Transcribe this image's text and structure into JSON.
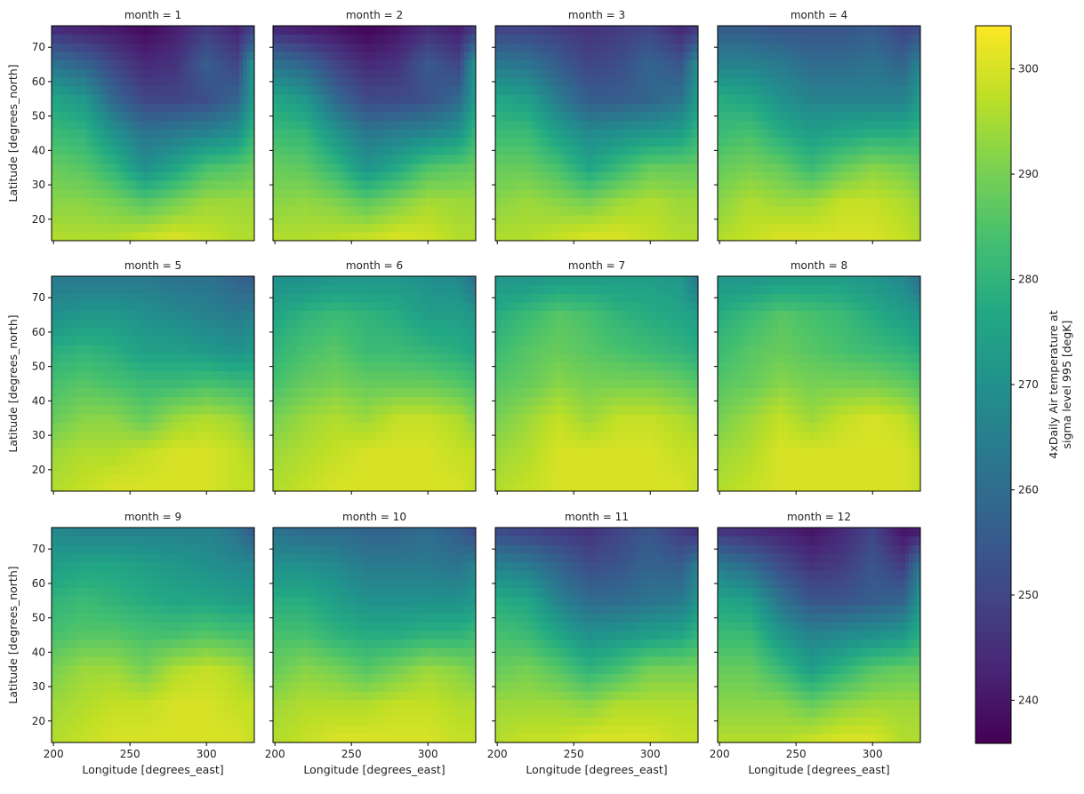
{
  "chart_data": {
    "type": "heatmap",
    "layout": "facet grid, 3 rows x 4 columns, shared axes",
    "colormap": "viridis",
    "xlabel": "Longitude [degrees_east]",
    "ylabel": "Latitude [degrees_north]",
    "xlim": [
      198.75,
      331.25
    ],
    "ylim": [
      13.75,
      76.25
    ],
    "xticks": [
      200,
      250,
      300
    ],
    "yticks": [
      20,
      30,
      40,
      50,
      60,
      70
    ],
    "colorbar": {
      "label_lines": [
        "4xDaily Air temperature at",
        "sigma level 995 [degK]"
      ],
      "range": [
        235.9,
        304.1
      ],
      "ticks": [
        240,
        250,
        260,
        270,
        280,
        290,
        300
      ]
    },
    "grid_lat": [
      75,
      65,
      55,
      45,
      35,
      25,
      15
    ],
    "grid_lon": [
      200,
      220,
      240,
      260,
      280,
      300,
      320,
      330
    ],
    "panels": [
      {
        "title": "month = 1",
        "values": [
          [
            245,
            243,
            241,
            238,
            242,
            248,
            243,
            250
          ],
          [
            262,
            258,
            250,
            244,
            246,
            256,
            250,
            270
          ],
          [
            276,
            272,
            258,
            250,
            250,
            252,
            258,
            272
          ],
          [
            282,
            280,
            270,
            262,
            264,
            266,
            270,
            280
          ],
          [
            288,
            286,
            280,
            270,
            276,
            284,
            286,
            288
          ],
          [
            292,
            292,
            290,
            286,
            290,
            294,
            294,
            294
          ],
          [
            296,
            296,
            296,
            298,
            300,
            298,
            296,
            296
          ]
        ]
      },
      {
        "title": "month = 2",
        "values": [
          [
            244,
            242,
            240,
            237,
            240,
            245,
            242,
            248
          ],
          [
            262,
            258,
            250,
            244,
            246,
            255,
            250,
            270
          ],
          [
            276,
            272,
            259,
            251,
            251,
            253,
            259,
            272
          ],
          [
            282,
            281,
            271,
            263,
            265,
            267,
            271,
            280
          ],
          [
            288,
            287,
            281,
            271,
            277,
            285,
            287,
            288
          ],
          [
            292,
            293,
            291,
            287,
            291,
            295,
            294,
            294
          ],
          [
            296,
            296,
            297,
            298,
            300,
            299,
            296,
            296
          ]
        ]
      },
      {
        "title": "month = 3",
        "values": [
          [
            250,
            250,
            248,
            246,
            248,
            250,
            244,
            248
          ],
          [
            264,
            262,
            256,
            250,
            252,
            258,
            254,
            268
          ],
          [
            276,
            274,
            264,
            256,
            256,
            258,
            262,
            272
          ],
          [
            282,
            282,
            274,
            268,
            270,
            272,
            274,
            280
          ],
          [
            288,
            288,
            284,
            276,
            282,
            288,
            288,
            288
          ],
          [
            292,
            294,
            292,
            290,
            294,
            296,
            294,
            294
          ],
          [
            296,
            296,
            298,
            300,
            300,
            298,
            296,
            296
          ]
        ]
      },
      {
        "title": "month = 4",
        "values": [
          [
            256,
            256,
            254,
            254,
            254,
            256,
            250,
            252
          ],
          [
            266,
            266,
            264,
            260,
            260,
            262,
            258,
            266
          ],
          [
            278,
            276,
            270,
            266,
            266,
            266,
            266,
            272
          ],
          [
            282,
            284,
            278,
            274,
            276,
            278,
            278,
            280
          ],
          [
            288,
            290,
            288,
            282,
            288,
            292,
            290,
            288
          ],
          [
            292,
            296,
            294,
            294,
            298,
            298,
            296,
            294
          ],
          [
            296,
            298,
            300,
            300,
            300,
            300,
            298,
            296
          ]
        ]
      },
      {
        "title": "month = 5",
        "values": [
          [
            264,
            264,
            264,
            264,
            262,
            262,
            258,
            256
          ],
          [
            270,
            272,
            272,
            270,
            268,
            266,
            264,
            266
          ],
          [
            278,
            280,
            278,
            274,
            274,
            272,
            270,
            272
          ],
          [
            284,
            286,
            284,
            282,
            282,
            284,
            282,
            282
          ],
          [
            288,
            292,
            292,
            288,
            294,
            296,
            294,
            290
          ],
          [
            294,
            296,
            296,
            298,
            300,
            300,
            298,
            296
          ],
          [
            296,
            298,
            300,
            300,
            300,
            300,
            298,
            298
          ]
        ]
      },
      {
        "title": "month = 6",
        "values": [
          [
            270,
            270,
            272,
            272,
            272,
            270,
            268,
            262
          ],
          [
            276,
            280,
            282,
            280,
            278,
            274,
            274,
            272
          ],
          [
            280,
            284,
            286,
            282,
            282,
            280,
            278,
            276
          ],
          [
            284,
            288,
            290,
            288,
            288,
            288,
            286,
            284
          ],
          [
            290,
            294,
            296,
            294,
            298,
            298,
            296,
            292
          ],
          [
            294,
            296,
            298,
            300,
            300,
            300,
            298,
            298
          ],
          [
            296,
            298,
            300,
            300,
            300,
            300,
            300,
            298
          ]
        ]
      },
      {
        "title": "month = 7",
        "values": [
          [
            272,
            272,
            274,
            274,
            274,
            274,
            272,
            264
          ],
          [
            278,
            282,
            286,
            284,
            280,
            278,
            276,
            274
          ],
          [
            282,
            286,
            288,
            286,
            284,
            282,
            280,
            278
          ],
          [
            286,
            288,
            292,
            290,
            290,
            290,
            288,
            286
          ],
          [
            290,
            294,
            298,
            294,
            298,
            298,
            296,
            294
          ],
          [
            294,
            296,
            300,
            300,
            300,
            300,
            298,
            298
          ],
          [
            296,
            298,
            300,
            300,
            300,
            300,
            300,
            298
          ]
        ]
      },
      {
        "title": "month = 8",
        "values": [
          [
            272,
            272,
            274,
            274,
            274,
            272,
            268,
            262
          ],
          [
            278,
            282,
            286,
            284,
            282,
            278,
            274,
            272
          ],
          [
            282,
            286,
            288,
            286,
            284,
            282,
            280,
            278
          ],
          [
            286,
            288,
            292,
            290,
            290,
            290,
            288,
            286
          ],
          [
            290,
            294,
            298,
            294,
            298,
            300,
            298,
            294
          ],
          [
            294,
            296,
            300,
            300,
            300,
            300,
            300,
            298
          ],
          [
            296,
            298,
            300,
            300,
            300,
            300,
            300,
            298
          ]
        ]
      },
      {
        "title": "month = 9",
        "values": [
          [
            268,
            266,
            266,
            266,
            266,
            266,
            262,
            256
          ],
          [
            274,
            276,
            276,
            274,
            272,
            270,
            268,
            268
          ],
          [
            280,
            282,
            280,
            278,
            276,
            276,
            274,
            274
          ],
          [
            284,
            286,
            286,
            284,
            284,
            286,
            284,
            284
          ],
          [
            290,
            294,
            294,
            290,
            296,
            298,
            296,
            292
          ],
          [
            294,
            296,
            298,
            298,
            300,
            300,
            298,
            298
          ],
          [
            296,
            298,
            300,
            300,
            300,
            300,
            300,
            298
          ]
        ]
      },
      {
        "title": "month = 10",
        "values": [
          [
            262,
            260,
            260,
            258,
            258,
            260,
            256,
            252
          ],
          [
            270,
            270,
            268,
            264,
            264,
            264,
            262,
            266
          ],
          [
            278,
            278,
            274,
            270,
            270,
            270,
            270,
            272
          ],
          [
            284,
            284,
            280,
            278,
            278,
            280,
            280,
            282
          ],
          [
            288,
            292,
            290,
            286,
            290,
            294,
            292,
            290
          ],
          [
            294,
            296,
            296,
            296,
            298,
            298,
            296,
            296
          ],
          [
            296,
            298,
            300,
            300,
            300,
            300,
            298,
            298
          ]
        ]
      },
      {
        "title": "month = 11",
        "values": [
          [
            252,
            250,
            248,
            246,
            250,
            254,
            248,
            246
          ],
          [
            266,
            264,
            258,
            252,
            254,
            258,
            256,
            264
          ],
          [
            278,
            276,
            266,
            260,
            260,
            262,
            264,
            270
          ],
          [
            284,
            282,
            276,
            270,
            272,
            274,
            276,
            280
          ],
          [
            288,
            290,
            286,
            280,
            284,
            290,
            290,
            290
          ],
          [
            294,
            294,
            294,
            292,
            296,
            296,
            296,
            296
          ],
          [
            296,
            298,
            298,
            300,
            300,
            300,
            298,
            298
          ]
        ]
      },
      {
        "title": "month = 12",
        "values": [
          [
            247,
            245,
            243,
            240,
            244,
            250,
            240,
            242
          ],
          [
            264,
            260,
            252,
            246,
            248,
            254,
            248,
            262
          ],
          [
            276,
            274,
            262,
            254,
            254,
            256,
            258,
            270
          ],
          [
            282,
            282,
            272,
            266,
            268,
            270,
            272,
            278
          ],
          [
            288,
            288,
            282,
            274,
            280,
            286,
            288,
            288
          ],
          [
            292,
            292,
            292,
            288,
            292,
            294,
            294,
            294
          ],
          [
            296,
            296,
            296,
            298,
            300,
            300,
            296,
            296
          ]
        ]
      }
    ]
  }
}
